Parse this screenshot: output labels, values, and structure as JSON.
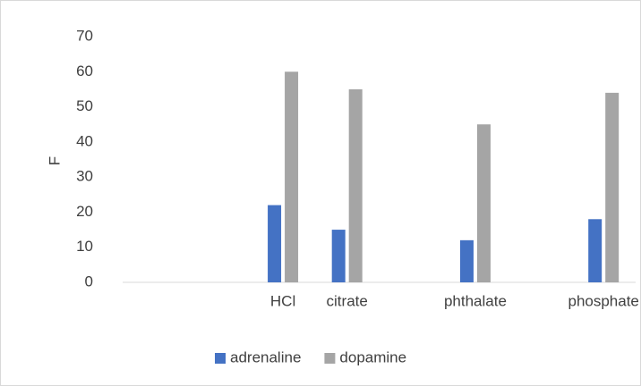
{
  "chart_data": {
    "type": "bar",
    "categories": [
      null,
      null,
      "HCl",
      "citrate",
      null,
      "phthalate",
      null,
      "phosphate"
    ],
    "series": [
      {
        "name": "adrenaline",
        "color": "#4472c4",
        "values": [
          null,
          null,
          22,
          15,
          null,
          12,
          null,
          18
        ]
      },
      {
        "name": "dopamine",
        "color": "#a5a5a5",
        "values": [
          null,
          null,
          60,
          55,
          null,
          45,
          null,
          54
        ]
      }
    ],
    "ylabel": "F",
    "ylim": [
      0,
      70
    ],
    "yticks": [
      0,
      10,
      20,
      30,
      40,
      50,
      60,
      70
    ],
    "grid": false,
    "legend": "bottom"
  }
}
